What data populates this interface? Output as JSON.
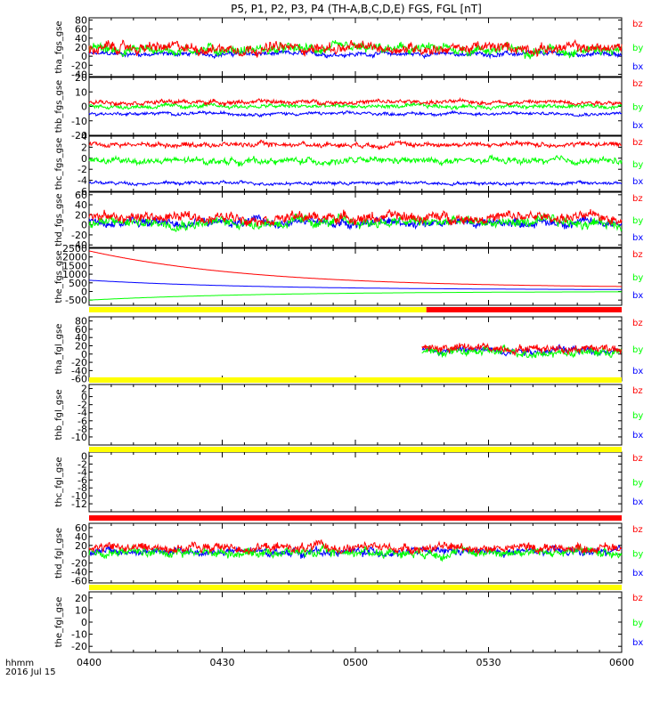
{
  "title": "P5, P1, P2, P3, P4 (TH-A,B,C,D,E) FGS, FGL [nT]",
  "footer": {
    "hhmm_label": "hhmm",
    "date_label": "2016 Jul 15"
  },
  "colors": {
    "bx": "#0000ff",
    "by": "#00ff00",
    "bz": "#ff0000",
    "bar_yellow": "#ffff00",
    "bar_red": "#ff0000"
  },
  "chart_data": {
    "type": "line",
    "x_range": [
      "04:00",
      "06:00"
    ],
    "x_ticks": [
      "0400",
      "0430",
      "0500",
      "0530",
      "0600"
    ],
    "legend": [
      "bz",
      "by",
      "bx"
    ],
    "panels": [
      {
        "ylabel": "tha_fgs_gse",
        "ylim": [
          -45,
          85
        ],
        "yticks": [
          80,
          60,
          40,
          20,
          0,
          -20,
          -40
        ],
        "series": [
          {
            "name": "bx",
            "coverage": [
              "04:00",
              "06:00"
            ],
            "base": 5,
            "noise": 7
          },
          {
            "name": "by",
            "coverage": [
              "04:00",
              "06:00"
            ],
            "base": 15,
            "noise": 15
          },
          {
            "name": "bz",
            "coverage": [
              "04:00",
              "06:00"
            ],
            "base": 18,
            "noise": 16
          }
        ]
      },
      {
        "ylabel": "thb_fgs_gse",
        "ylim": [
          -20,
          20
        ],
        "yticks": [
          20,
          10,
          0,
          -10,
          -20
        ],
        "series": [
          {
            "name": "bx",
            "coverage": [
              "04:00",
              "06:00"
            ],
            "base": -5,
            "noise": 1.5
          },
          {
            "name": "by",
            "coverage": [
              "04:00",
              "06:00"
            ],
            "base": 0,
            "noise": 2
          },
          {
            "name": "bz",
            "coverage": [
              "04:00",
              "06:00"
            ],
            "base": 3,
            "noise": 2
          }
        ]
      },
      {
        "ylabel": "thc_fgs_gse",
        "ylim": [
          -6,
          4
        ],
        "yticks": [
          4,
          2,
          0,
          -2,
          -4,
          -6
        ],
        "series": [
          {
            "name": "bx",
            "coverage": [
              "04:00",
              "06:00"
            ],
            "base": -4.5,
            "noise": 0.4
          },
          {
            "name": "by",
            "coverage": [
              "04:00",
              "06:00"
            ],
            "base": -0.5,
            "noise": 0.8
          },
          {
            "name": "bz",
            "coverage": [
              "04:00",
              "06:00"
            ],
            "base": 2.5,
            "noise": 0.6
          }
        ]
      },
      {
        "ylabel": "thd_fgs_gse",
        "ylim": [
          -45,
          65
        ],
        "yticks": [
          60,
          40,
          20,
          0,
          -20,
          -40
        ],
        "series": [
          {
            "name": "bx",
            "coverage": [
              "04:00",
              "06:00"
            ],
            "base": 5,
            "noise": 12
          },
          {
            "name": "by",
            "coverage": [
              "04:00",
              "06:00"
            ],
            "base": 5,
            "noise": 14
          },
          {
            "name": "bz",
            "coverage": [
              "04:00",
              "06:00"
            ],
            "base": 15,
            "noise": 14
          }
        ]
      },
      {
        "ylabel": "the_fgs_gse",
        "ylim": [
          -800,
          2500
        ],
        "yticks": [
          2500,
          2000,
          1500,
          1000,
          500,
          0,
          -500
        ],
        "series": [
          {
            "name": "bx",
            "coverage": [
              "04:00",
              "06:00"
            ],
            "decay_from": 650,
            "decay_to": 90
          },
          {
            "name": "by",
            "coverage": [
              "04:00",
              "06:00"
            ],
            "decay_from": -500,
            "decay_to": 0
          },
          {
            "name": "bz",
            "coverage": [
              "04:00",
              "06:00"
            ],
            "decay_from": 2350,
            "decay_to": 200
          }
        ]
      },
      {
        "ylabel": "tha_fgl_gse",
        "ylim": [
          -65,
          90
        ],
        "yticks": [
          80,
          60,
          40,
          20,
          0,
          -20,
          -40,
          -60
        ],
        "series": [
          {
            "name": "bx",
            "coverage": [
              "05:15",
              "06:00"
            ],
            "base": 10,
            "noise": 12
          },
          {
            "name": "by",
            "coverage": [
              "05:15",
              "06:00"
            ],
            "base": 5,
            "noise": 14
          },
          {
            "name": "bz",
            "coverage": [
              "05:15",
              "06:00"
            ],
            "base": 15,
            "noise": 14
          }
        ]
      },
      {
        "ylabel": "thb_fgl_gse",
        "ylim": [
          -12,
          3
        ],
        "yticks": [
          2,
          0,
          -2,
          -4,
          -6,
          -8,
          -10
        ],
        "series": []
      },
      {
        "ylabel": "thc_fgl_gse",
        "ylim": [
          -14,
          1
        ],
        "yticks": [
          0,
          -2,
          -4,
          -6,
          -8,
          -10,
          -12
        ],
        "series": []
      },
      {
        "ylabel": "thd_fgl_gse",
        "ylim": [
          -65,
          70
        ],
        "yticks": [
          60,
          40,
          20,
          0,
          -20,
          -40,
          -60
        ],
        "series": [
          {
            "name": "bx",
            "coverage": [
              "04:00",
              "06:00"
            ],
            "base": 5,
            "noise": 12
          },
          {
            "name": "by",
            "coverage": [
              "04:00",
              "06:00"
            ],
            "base": 5,
            "noise": 14
          },
          {
            "name": "bz",
            "coverage": [
              "04:00",
              "06:00"
            ],
            "base": 15,
            "noise": 14
          }
        ]
      },
      {
        "ylabel": "the_fgl_gse",
        "ylim": [
          -25,
          25
        ],
        "yticks": [
          20,
          10,
          0,
          -10,
          -20
        ],
        "series": []
      }
    ],
    "mode_bars": [
      {
        "after_panel": "the_fgs_gse",
        "segments": [
          {
            "color": "yellow",
            "from": "04:00",
            "to": "05:16"
          },
          {
            "color": "red",
            "from": "05:16",
            "to": "06:00"
          }
        ]
      },
      {
        "after_panel": "tha_fgl_gse",
        "segments": [
          {
            "color": "yellow",
            "from": "04:00",
            "to": "06:00"
          }
        ]
      },
      {
        "after_panel": "thb_fgl_gse",
        "segments": [
          {
            "color": "yellow",
            "from": "04:00",
            "to": "06:00"
          }
        ]
      },
      {
        "after_panel": "thc_fgl_gse",
        "segments": [
          {
            "color": "red",
            "from": "04:00",
            "to": "06:00"
          }
        ]
      },
      {
        "after_panel": "thd_fgl_gse",
        "segments": [
          {
            "color": "yellow",
            "from": "04:00",
            "to": "06:00"
          }
        ]
      }
    ]
  }
}
